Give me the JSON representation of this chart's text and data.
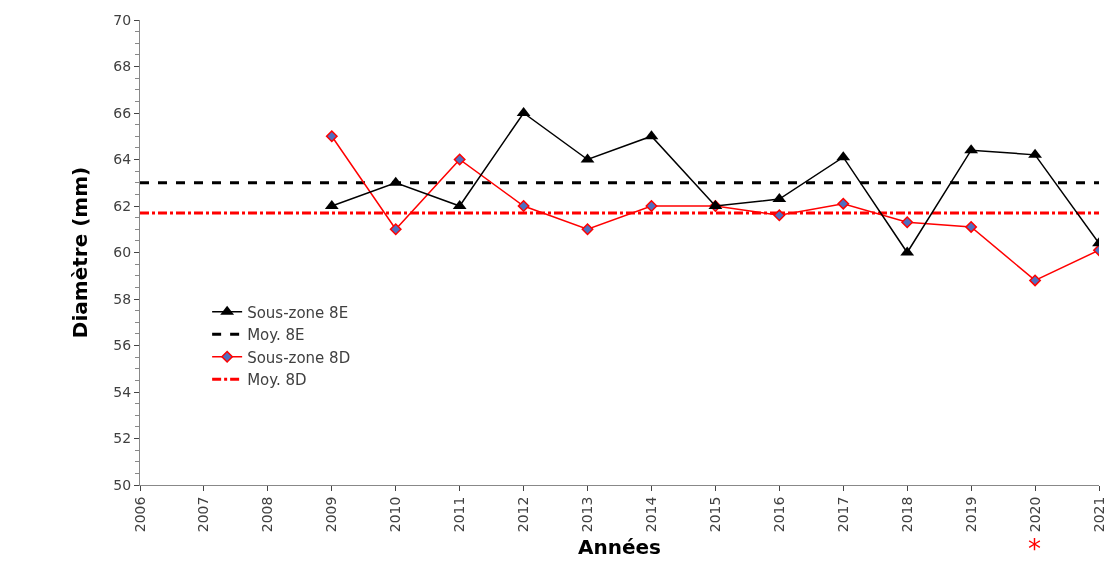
{
  "chart_data": {
    "type": "line",
    "xlabel": "Années",
    "ylabel": "Diamètre (mm)",
    "x": [
      2009,
      2010,
      2011,
      2012,
      2013,
      2014,
      2015,
      2016,
      2017,
      2018,
      2019,
      2020,
      2021
    ],
    "series": [
      {
        "name": "Sous-zone 8E",
        "color": "#000000",
        "marker": "triangle",
        "values": [
          62,
          63,
          62,
          66,
          64,
          65,
          62,
          62.3,
          64.1,
          60,
          64.4,
          64.2,
          60.4
        ]
      },
      {
        "name": "Sous-zone 8D",
        "color": "#ff0000",
        "marker": "diamond",
        "values": [
          65,
          61,
          64,
          62,
          61,
          62,
          62,
          61.6,
          62.1,
          61.3,
          61.1,
          58.8,
          60.1
        ]
      }
    ],
    "ref_lines": [
      {
        "axis": "y",
        "value": 63,
        "label": "Moy. 8E",
        "color": "#000000",
        "line_style": "dashed"
      },
      {
        "axis": "y",
        "value": 61.7,
        "label": "Moy. 8D",
        "color": "#ff0000",
        "line_style": "dashdot"
      }
    ],
    "annotations": [
      "*"
    ],
    "xlim": [
      2006,
      2021
    ],
    "xticks": [
      2006,
      2007,
      2008,
      2009,
      2010,
      2011,
      2012,
      2013,
      2014,
      2015,
      2016,
      2017,
      2018,
      2019,
      2020,
      2021
    ],
    "ylim": [
      50,
      70
    ],
    "yticks": [
      50,
      52,
      54,
      56,
      58,
      60,
      62,
      64,
      66,
      68,
      70
    ],
    "legend": "left"
  }
}
